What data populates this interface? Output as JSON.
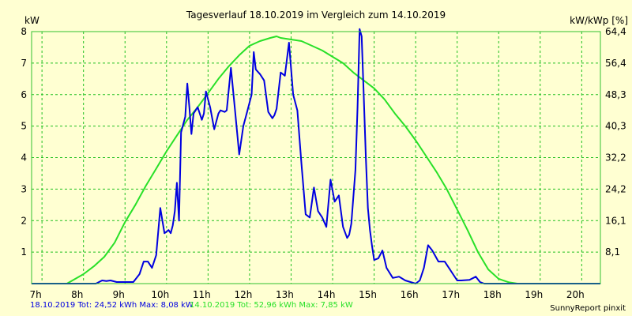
{
  "chart_data": {
    "type": "line",
    "title": "Tagesverlauf 18.10.2019 im Vergleich zum 14.10.2019",
    "ylabel_left": "kW",
    "ylabel_right": "kW/kWp [%]",
    "x_ticks": [
      "7h",
      "8h",
      "9h",
      "10h",
      "11h",
      "12h",
      "13h",
      "14h",
      "15h",
      "16h",
      "17h",
      "18h",
      "19h",
      "20h"
    ],
    "y_ticks_left": [
      "1",
      "2",
      "3",
      "4",
      "5",
      "6",
      "7",
      "8"
    ],
    "y_ticks_right": [
      "8,1",
      "16,1",
      "24,2",
      "32,2",
      "40,3",
      "48,3",
      "56,4",
      "64,4"
    ],
    "xlim": [
      6.75,
      20.45
    ],
    "ylim": [
      0,
      8
    ],
    "grid": true,
    "series": [
      {
        "name": "18.10.2019",
        "color": "#0000e0",
        "x": [
          6.75,
          8.3,
          8.45,
          8.55,
          8.65,
          8.8,
          9.0,
          9.2,
          9.35,
          9.45,
          9.55,
          9.65,
          9.75,
          9.85,
          9.95,
          10.05,
          10.1,
          10.15,
          10.2,
          10.25,
          10.3,
          10.35,
          10.45,
          10.5,
          10.55,
          10.6,
          10.65,
          10.75,
          10.85,
          10.9,
          10.95,
          11.05,
          11.15,
          11.25,
          11.3,
          11.4,
          11.45,
          11.55,
          11.65,
          11.75,
          11.85,
          11.95,
          12.05,
          12.1,
          12.15,
          12.25,
          12.35,
          12.45,
          12.55,
          12.6,
          12.65,
          12.75,
          12.85,
          12.95,
          13.05,
          13.15,
          13.25,
          13.35,
          13.45,
          13.55,
          13.65,
          13.75,
          13.85,
          13.95,
          14.05,
          14.15,
          14.25,
          14.35,
          14.4,
          14.45,
          14.55,
          14.6,
          14.65,
          14.7,
          14.75,
          14.8,
          14.85,
          14.9,
          14.95,
          15.0,
          15.1,
          15.2,
          15.3,
          15.45,
          15.6,
          15.75,
          16.0,
          16.1,
          16.2,
          16.3,
          16.4,
          16.55,
          16.7,
          16.8,
          16.9,
          17.0,
          17.1,
          17.3,
          17.45,
          17.55,
          17.65,
          20.45
        ],
        "values": [
          0,
          0,
          0.1,
          0.08,
          0.1,
          0.05,
          0.05,
          0.05,
          0.3,
          0.7,
          0.7,
          0.5,
          0.9,
          2.4,
          1.6,
          1.7,
          1.6,
          1.85,
          2.3,
          3.2,
          2.0,
          4.8,
          5.3,
          6.35,
          5.6,
          4.75,
          5.4,
          5.6,
          5.2,
          5.4,
          6.1,
          5.6,
          4.9,
          5.4,
          5.5,
          5.45,
          5.5,
          6.85,
          5.5,
          4.1,
          5.0,
          5.5,
          6.0,
          7.35,
          6.8,
          6.65,
          6.45,
          5.45,
          5.25,
          5.35,
          5.55,
          6.7,
          6.6,
          7.65,
          6.0,
          5.5,
          3.8,
          2.2,
          2.1,
          3.05,
          2.3,
          2.1,
          1.8,
          3.3,
          2.6,
          2.8,
          1.8,
          1.45,
          1.55,
          1.9,
          3.6,
          5.6,
          8.08,
          7.85,
          6.0,
          4.0,
          2.4,
          1.7,
          1.2,
          0.75,
          0.8,
          1.05,
          0.5,
          0.18,
          0.22,
          0.1,
          0,
          0.1,
          0.5,
          1.22,
          1.05,
          0.7,
          0.7,
          0.5,
          0.3,
          0.1,
          0.1,
          0.12,
          0.22,
          0.05,
          0,
          0
        ]
      },
      {
        "name": "14.10.2019",
        "color": "#28e028",
        "x": [
          6.75,
          7.6,
          7.8,
          8.0,
          8.25,
          8.5,
          8.75,
          9.0,
          9.25,
          9.5,
          9.75,
          10.0,
          10.25,
          10.5,
          10.75,
          11.0,
          11.25,
          11.5,
          11.75,
          12.0,
          12.25,
          12.5,
          12.65,
          12.75,
          13.0,
          13.25,
          13.5,
          13.75,
          14.0,
          14.25,
          14.5,
          14.75,
          15.0,
          15.25,
          15.5,
          15.75,
          16.0,
          16.25,
          16.5,
          16.75,
          17.0,
          17.25,
          17.5,
          17.75,
          18.0,
          18.25,
          18.45,
          20.45
        ],
        "values": [
          0,
          0,
          0.15,
          0.3,
          0.55,
          0.85,
          1.3,
          1.95,
          2.5,
          3.1,
          3.65,
          4.2,
          4.7,
          5.2,
          5.6,
          6.05,
          6.5,
          6.9,
          7.25,
          7.55,
          7.7,
          7.8,
          7.85,
          7.8,
          7.75,
          7.7,
          7.55,
          7.4,
          7.2,
          7.0,
          6.7,
          6.45,
          6.2,
          5.85,
          5.4,
          5.0,
          4.55,
          4.05,
          3.55,
          3.0,
          2.35,
          1.7,
          1.0,
          0.45,
          0.15,
          0.04,
          0,
          0
        ]
      }
    ]
  },
  "footer": {
    "series1_text": "18.10.2019 Tot: 24,52 kWh Max: 8,08 kW",
    "series1_color": "#0000e0",
    "series2_text": "14.10.2019 Tot: 52,96 kWh Max: 7,85 kW",
    "series2_color": "#28e028",
    "credit": "SunnyReport pinxit"
  }
}
